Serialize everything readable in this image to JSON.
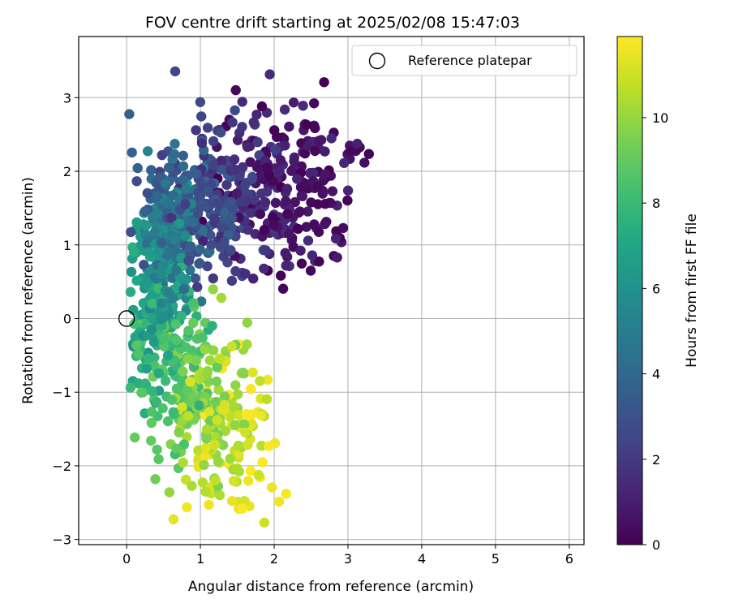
{
  "chart_data": {
    "type": "scatter",
    "title": "FOV centre drift starting at 2025/02/08 15:47:03",
    "xlabel": "Angular distance from reference (arcmin)",
    "ylabel": "Rotation from reference (arcmin)",
    "xlim": [
      -0.65,
      6.2
    ],
    "ylim": [
      -3.07,
      3.83
    ],
    "xticks": [
      "0",
      "1",
      "2",
      "3",
      "4",
      "5",
      "6"
    ],
    "yticks": [
      "−3",
      "−2",
      "−1",
      "0",
      "1",
      "2",
      "3"
    ],
    "grid": true,
    "legend": {
      "placement": "top-right",
      "entries": [
        "Reference platepar"
      ]
    },
    "reference_point": {
      "x": 0,
      "y": 0
    },
    "colorbar": {
      "label": "Hours from first FF file",
      "range": [
        0,
        11.9
      ],
      "ticks": [
        "0",
        "2",
        "4",
        "6",
        "8",
        "10"
      ],
      "colormap": "viridis"
    },
    "point_count": 1150
  }
}
